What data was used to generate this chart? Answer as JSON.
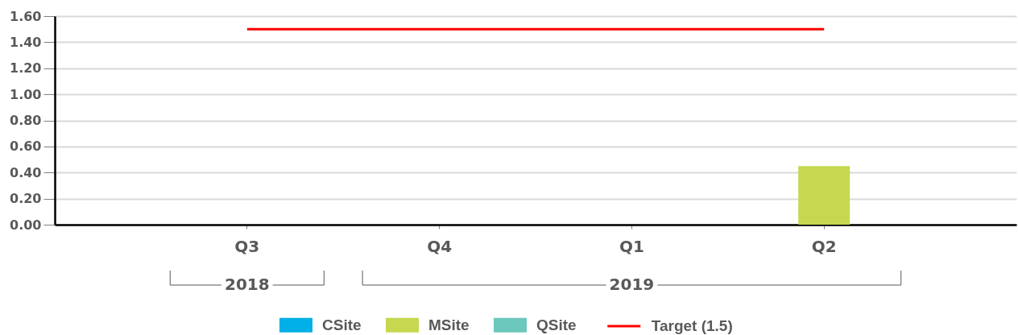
{
  "chart_data": {
    "type": "bar",
    "categories": [
      "Q3",
      "Q4",
      "Q1",
      "Q2"
    ],
    "series": [
      {
        "name": "CSite",
        "color": "#00b0e6",
        "values": [
          null,
          null,
          null,
          null
        ]
      },
      {
        "name": "MSite",
        "color": "#c6d84f",
        "values": [
          null,
          null,
          null,
          0.45
        ]
      },
      {
        "name": "QSite",
        "color": "#6cc7bc",
        "values": [
          null,
          null,
          null,
          null
        ]
      },
      {
        "name": "Target (1.5)",
        "type": "line",
        "color": "#ff0000",
        "values": [
          1.5,
          1.5,
          1.5,
          1.5
        ]
      }
    ],
    "ylim": [
      0,
      1.6
    ],
    "yticks": [
      {
        "value": 0,
        "label": "0.00"
      },
      {
        "value": 0.2,
        "label": "0.20"
      },
      {
        "value": 0.4,
        "label": "0.40"
      },
      {
        "value": 0.6,
        "label": "0.60"
      },
      {
        "value": 0.8,
        "label": "0.80"
      },
      {
        "value": 1.0,
        "label": "1.00"
      },
      {
        "value": 1.2,
        "label": "1.20"
      },
      {
        "value": 1.4,
        "label": "1.40"
      },
      {
        "value": 1.6,
        "label": "1.60"
      }
    ],
    "grid": "y",
    "legend": "bottom",
    "annotations": [
      "2018",
      "2019"
    ]
  }
}
